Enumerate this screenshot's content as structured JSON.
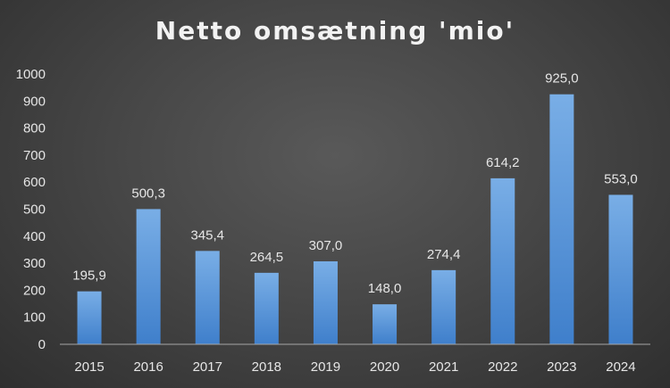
{
  "chart_data": {
    "type": "bar",
    "title": "Netto omsætning 'mio'",
    "categories": [
      "2015",
      "2016",
      "2017",
      "2018",
      "2019",
      "2020",
      "2021",
      "2022",
      "2023",
      "2024"
    ],
    "values": [
      195.9,
      500.3,
      345.4,
      264.5,
      307.0,
      148.0,
      274.4,
      614.2,
      925.0,
      553.0
    ],
    "data_labels": [
      "195,9",
      "500,3",
      "345,4",
      "264,5",
      "307,0",
      "148,0",
      "274,4",
      "614,2",
      "925,0",
      "553,0"
    ],
    "yticks": [
      "0",
      "100",
      "200",
      "300",
      "400",
      "500",
      "600",
      "700",
      "800",
      "900",
      "1000"
    ],
    "ylim": [
      0,
      1000
    ],
    "xlabel": "",
    "ylabel": "",
    "grid": false,
    "legend": "none",
    "colors": {
      "bar_top": "#79aee6",
      "bar_bottom": "#3f7fcb",
      "axis": "#a6a6a6",
      "text": "#e6e6e6",
      "title": "#f2f2f2"
    }
  }
}
